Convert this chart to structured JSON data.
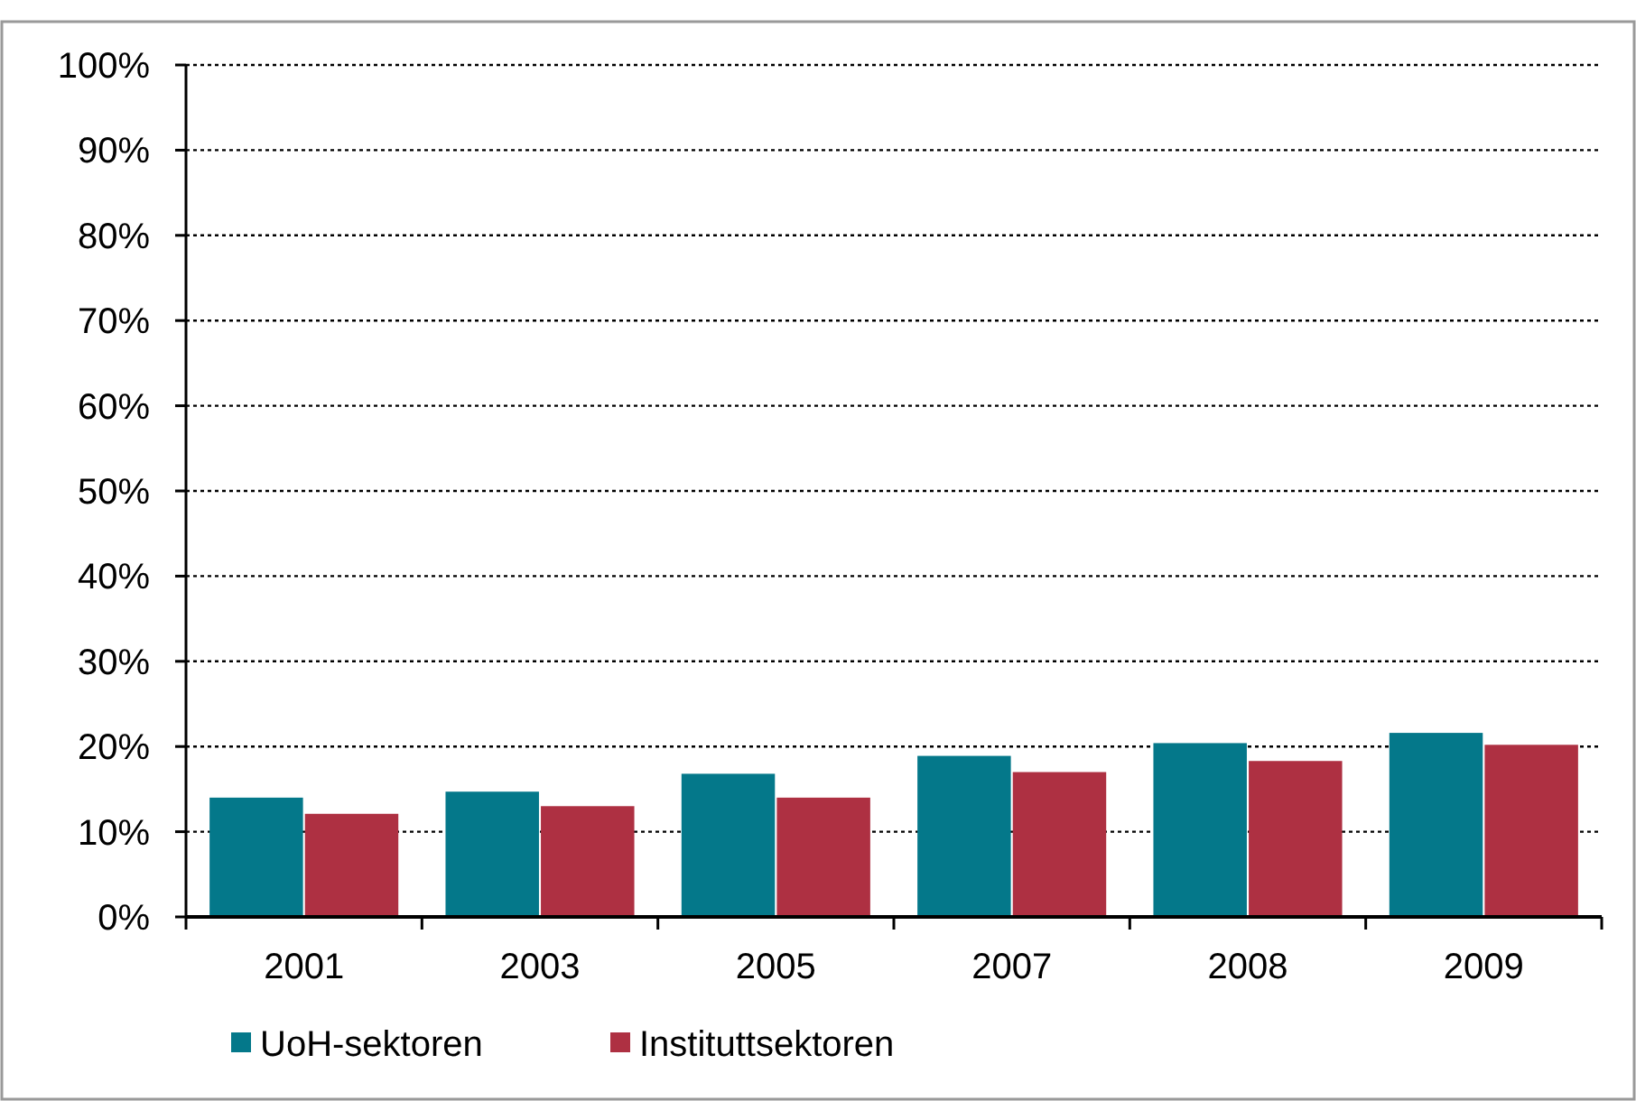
{
  "chart_data": {
    "type": "bar",
    "categories": [
      "2001",
      "2003",
      "2005",
      "2007",
      "2008",
      "2009"
    ],
    "series": [
      {
        "name": "UoH-sektoren",
        "color": "#04788a",
        "values": [
          14.0,
          14.7,
          16.8,
          18.9,
          20.4,
          21.6
        ]
      },
      {
        "name": "Instituttsektoren",
        "color": "#ae3042",
        "values": [
          12.1,
          13.0,
          14.0,
          17.0,
          18.3,
          20.2
        ]
      }
    ],
    "ylim": [
      0,
      100
    ],
    "yticks": [
      {
        "value": 0,
        "label": "0%"
      },
      {
        "value": 10,
        "label": "10%"
      },
      {
        "value": 20,
        "label": "20%"
      },
      {
        "value": 30,
        "label": "30%"
      },
      {
        "value": 40,
        "label": "40%"
      },
      {
        "value": 50,
        "label": "50%"
      },
      {
        "value": 60,
        "label": "60%"
      },
      {
        "value": 70,
        "label": "70%"
      },
      {
        "value": 80,
        "label": "80%"
      },
      {
        "value": 90,
        "label": "90%"
      },
      {
        "value": 100,
        "label": "100%"
      }
    ],
    "grid": "y",
    "legend": "bottom left"
  }
}
